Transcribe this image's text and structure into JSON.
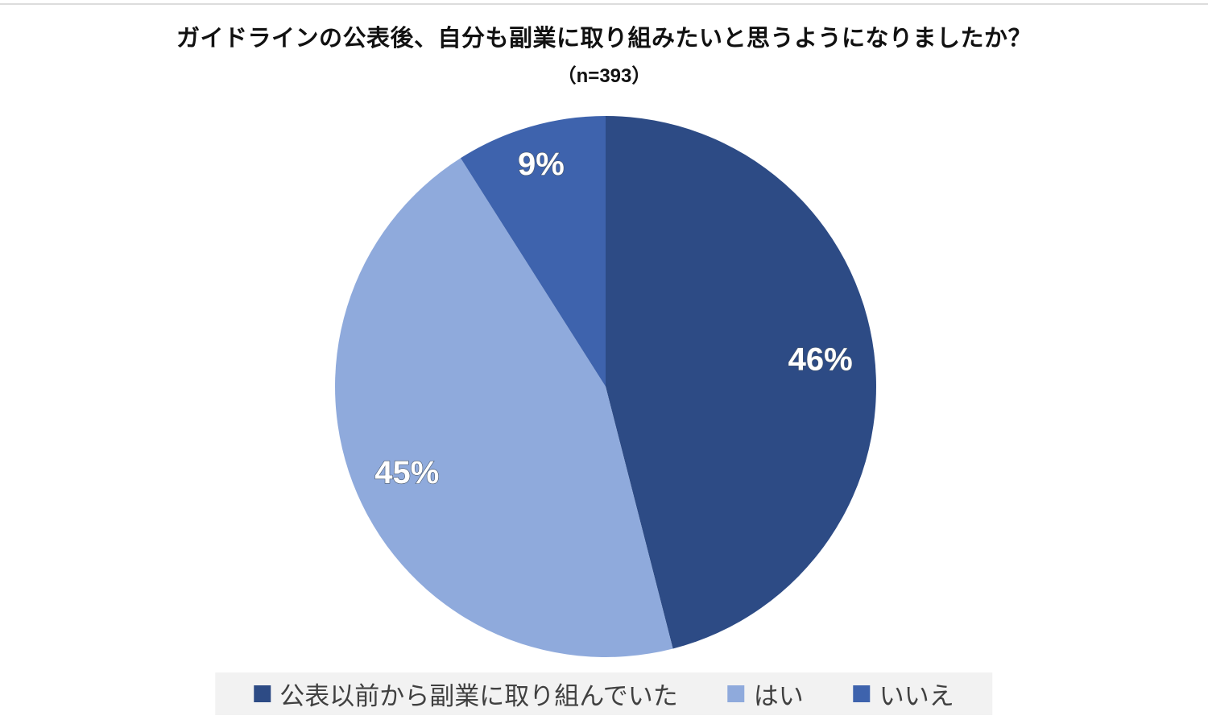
{
  "title": "ガイドラインの公表後、自分も副業に取り組みたいと思うようになりましたか？",
  "subtitle": "（n=393）",
  "chart_data": {
    "type": "pie",
    "title": "ガイドラインの公表後、自分も副業に取り組みたいと思うようになりましたか？",
    "sample_size_label": "（n=393）",
    "categories": [
      "公表以前から副業に取り組んでいた",
      "はい",
      "いいえ"
    ],
    "values": [
      46,
      45,
      9
    ],
    "data_labels": [
      "46%",
      "45%",
      "9%"
    ],
    "colors": [
      "#2d4b85",
      "#8faadc",
      "#3e63ad"
    ],
    "start_angle_deg": 0,
    "direction": "clockwise",
    "legend_position": "bottom",
    "label_color": "#ffffff"
  },
  "legend": {
    "items": [
      {
        "label": "公表以前から副業に取り組んでいた",
        "color": "#2d4b85"
      },
      {
        "label": "はい",
        "color": "#8faadc"
      },
      {
        "label": "いいえ",
        "color": "#3e63ad"
      }
    ]
  }
}
